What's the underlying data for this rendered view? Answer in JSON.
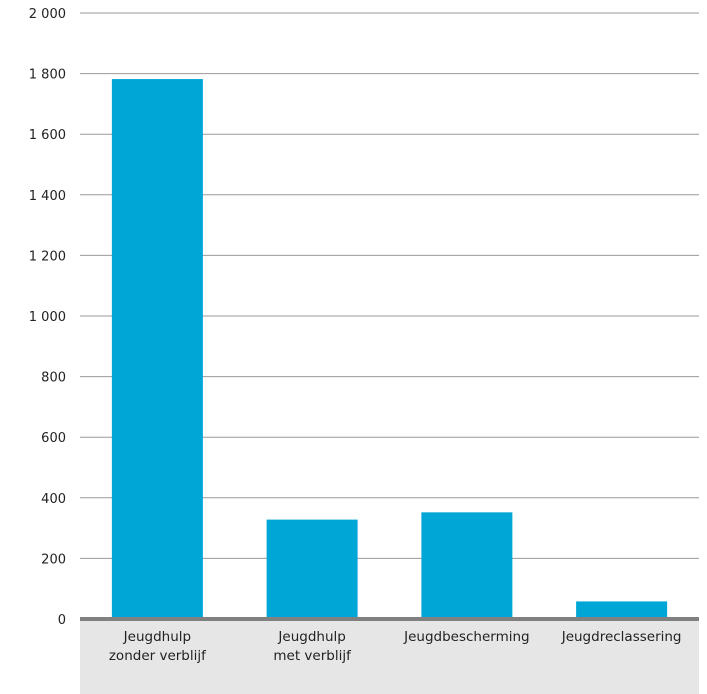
{
  "chart_data": {
    "type": "bar",
    "categories": [
      [
        "Jeugdhulp",
        "zonder verblijf"
      ],
      [
        "Jeugdhulp",
        "met verblijf"
      ],
      [
        "Jeugdbescherming"
      ],
      [
        "Jeugdreclassering"
      ]
    ],
    "values": [
      1782,
      328,
      352,
      58
    ],
    "y_ticks": [
      0,
      200,
      400,
      600,
      800,
      1000,
      1200,
      1400,
      1600,
      1800,
      2000
    ],
    "y_tick_labels": [
      "0",
      "200",
      "400",
      "600",
      "800",
      "1 000",
      "1 200",
      "1 400",
      "1 600",
      "1 800",
      "2 000"
    ],
    "ylim": [
      0,
      2000
    ],
    "grid": true,
    "title": "",
    "xlabel": "",
    "ylabel": "",
    "colors": {
      "bar": "#00a6d6",
      "grid": "#9a9a9a",
      "baseline": "#808080",
      "label_band": "#e6e6e6"
    }
  }
}
